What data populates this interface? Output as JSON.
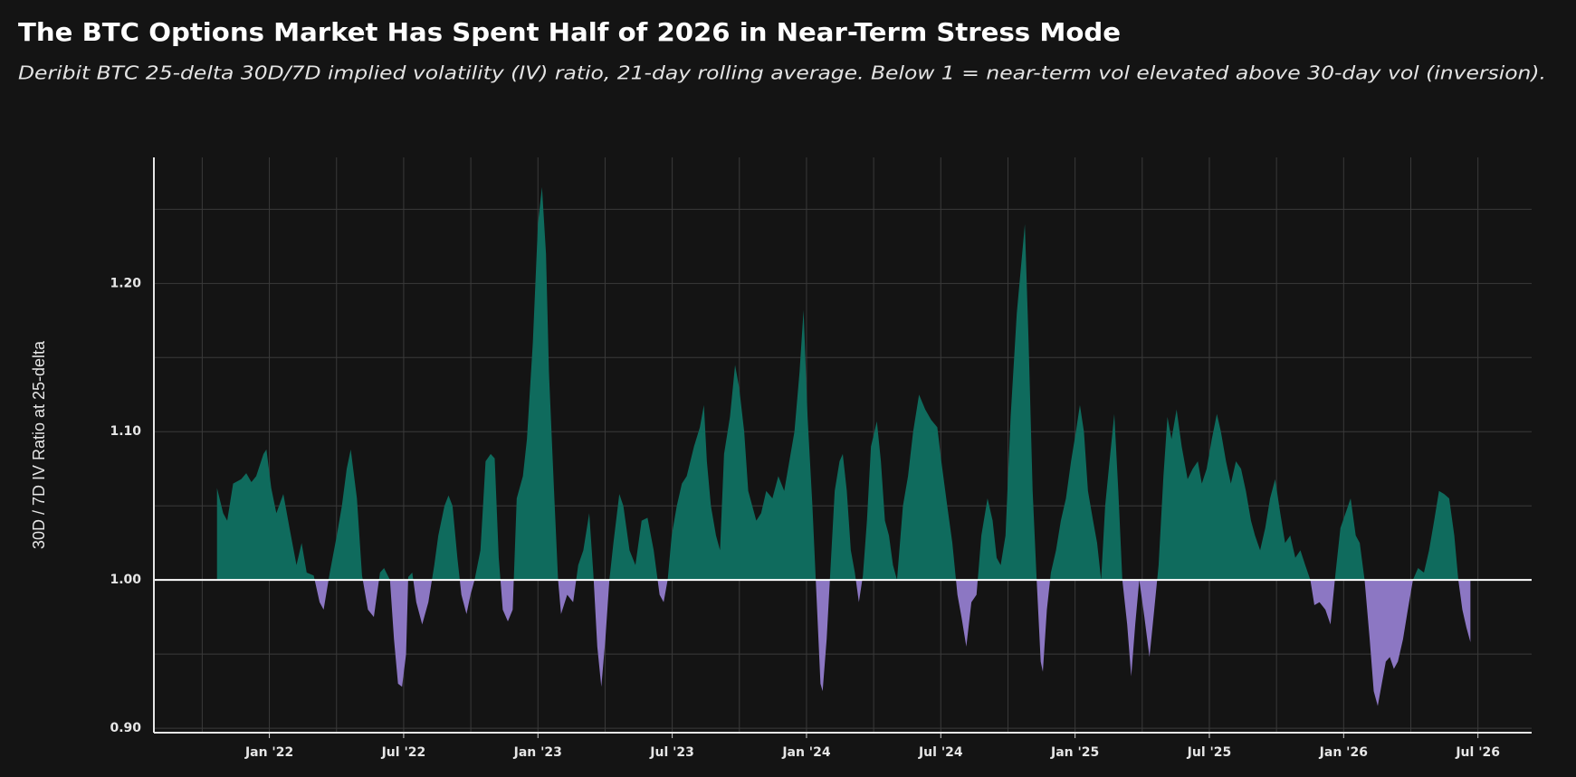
{
  "chart_data": {
    "type": "area",
    "title": "The BTC Options Market Has Spent Half of 2026 in Near-Term Stress Mode",
    "subtitle": "Deribit BTC 25-delta 30D/7D implied volatility (IV) ratio, 21-day rolling average. Below 1 = near-term vol elevated above 30-day vol (inversion).",
    "y_label": "30D / 7D IV Ratio at 25-delta",
    "baseline": 1.0,
    "colors": {
      "above": "#0f6b5d",
      "below": "#8c77c3"
    },
    "grid": true,
    "xlim": [
      2021.57,
      2026.7
    ],
    "ylim": [
      0.897,
      1.285
    ],
    "xticks": [
      {
        "value": 2022,
        "label": "Jan '22"
      },
      {
        "value": 2022.5,
        "label": "Jul '22"
      },
      {
        "value": 2023,
        "label": "Jan '23"
      },
      {
        "value": 2023.5,
        "label": "Jul '23"
      },
      {
        "value": 2024,
        "label": "Jan '24"
      },
      {
        "value": 2024.5,
        "label": "Jul '24"
      },
      {
        "value": 2025,
        "label": "Jan '25"
      },
      {
        "value": 2025.5,
        "label": "Jul '25"
      },
      {
        "value": 2026,
        "label": "Jan '26"
      },
      {
        "value": 2026.5,
        "label": "Jul '26"
      }
    ],
    "xgrid_minor": [
      2021.75,
      2022.25,
      2022.75,
      2023.25,
      2023.75,
      2024.25,
      2024.75,
      2025.25,
      2025.75,
      2026.25
    ],
    "yticks": [
      {
        "value": 0.9,
        "label": "0.90"
      },
      {
        "value": 1.0,
        "label": "1.00"
      },
      {
        "value": 1.1,
        "label": "1.10"
      },
      {
        "value": 1.2,
        "label": "1.20"
      }
    ],
    "ygrid_minor": [
      0.95,
      1.05,
      1.15,
      1.25
    ],
    "x": [
      2021.805,
      2021.828,
      2021.843,
      2021.865,
      2021.895,
      2021.914,
      2021.933,
      2021.951,
      2021.978,
      2021.989,
      2022.007,
      2022.026,
      2022.052,
      2022.075,
      2022.101,
      2022.12,
      2022.139,
      2022.165,
      2022.187,
      2022.202,
      2022.225,
      2022.251,
      2022.27,
      2022.288,
      2022.303,
      2022.326,
      2022.345,
      2022.367,
      2022.389,
      2022.412,
      2022.427,
      2022.449,
      2022.464,
      2022.479,
      2022.494,
      2022.509,
      2022.517,
      2022.532,
      2022.547,
      2022.569,
      2022.592,
      2022.614,
      2022.629,
      2022.652,
      2022.667,
      2022.682,
      2022.7,
      2022.715,
      2022.734,
      2022.749,
      2022.764,
      2022.786,
      2022.805,
      2022.824,
      2022.839,
      2022.854,
      2022.869,
      2022.888,
      2022.906,
      2022.921,
      2022.944,
      2022.959,
      2022.981,
      2023.0,
      2023.015,
      2023.03,
      2023.041,
      2023.06,
      2023.075,
      2023.086,
      2023.109,
      2023.131,
      2023.15,
      2023.169,
      2023.191,
      2023.206,
      2023.221,
      2023.236,
      2023.251,
      2023.266,
      2023.281,
      2023.303,
      2023.318,
      2023.341,
      2023.363,
      2023.386,
      2023.408,
      2023.431,
      2023.453,
      2023.468,
      2023.483,
      2023.498,
      2023.517,
      2023.536,
      2023.554,
      2023.581,
      2023.603,
      2023.618,
      2023.629,
      2023.644,
      2023.663,
      2023.678,
      2023.693,
      2023.715,
      2023.734,
      2023.749,
      2023.768,
      2023.783,
      2023.798,
      2023.813,
      2023.831,
      2023.85,
      2023.873,
      2023.895,
      2023.917,
      2023.936,
      2023.955,
      2023.974,
      2023.989,
      2024.004,
      2024.022,
      2024.037,
      2024.052,
      2024.06,
      2024.075,
      2024.09,
      2024.105,
      2024.123,
      2024.135,
      2024.15,
      2024.165,
      2024.18,
      2024.195,
      2024.21,
      2024.225,
      2024.24,
      2024.262,
      2024.277,
      2024.292,
      2024.307,
      2024.322,
      2024.337,
      2024.359,
      2024.378,
      2024.397,
      2024.419,
      2024.442,
      2024.464,
      2024.487,
      2024.502,
      2024.524,
      2024.543,
      2024.562,
      2024.577,
      2024.595,
      2024.614,
      2024.633,
      2024.651,
      2024.674,
      2024.693,
      2024.708,
      2024.723,
      2024.741,
      2024.76,
      2024.783,
      2024.798,
      2024.813,
      2024.827,
      2024.842,
      2024.857,
      2024.872,
      2024.88,
      2024.895,
      2024.91,
      2024.929,
      2024.947,
      2024.966,
      2024.985,
      2025.003,
      2025.018,
      2025.033,
      2025.048,
      2025.067,
      2025.082,
      2025.097,
      2025.112,
      2025.131,
      2025.146,
      2025.161,
      2025.176,
      2025.194,
      2025.209,
      2025.224,
      2025.239,
      2025.258,
      2025.277,
      2025.292,
      2025.311,
      2025.329,
      2025.344,
      2025.359,
      2025.378,
      2025.397,
      2025.419,
      2025.438,
      2025.457,
      2025.472,
      2025.49,
      2025.509,
      2025.528,
      2025.543,
      2025.562,
      2025.58,
      2025.599,
      2025.618,
      2025.636,
      2025.655,
      2025.67,
      2025.689,
      2025.708,
      2025.726,
      2025.745,
      2025.764,
      2025.782,
      2025.801,
      2025.82,
      2025.839,
      2025.857,
      2025.876,
      2025.891,
      2025.91,
      2025.932,
      2025.951,
      2025.97,
      2025.988,
      2026.007,
      2026.026,
      2026.045,
      2026.06,
      2026.078,
      2026.097,
      2026.112,
      2026.127,
      2026.142,
      2026.157,
      2026.172,
      2026.187,
      2026.202,
      2026.221,
      2026.239,
      2026.258,
      2026.277,
      2026.299,
      2026.318,
      2026.337,
      2026.355,
      2026.374,
      2026.393,
      2026.412,
      2026.427,
      2026.442,
      2026.457,
      2026.472
    ],
    "values": [
      1.062,
      1.045,
      1.04,
      1.065,
      1.068,
      1.072,
      1.066,
      1.07,
      1.085,
      1.088,
      1.062,
      1.045,
      1.058,
      1.035,
      1.01,
      1.025,
      1.005,
      1.003,
      0.985,
      0.98,
      1.005,
      1.03,
      1.05,
      1.075,
      1.088,
      1.055,
      1.003,
      0.98,
      0.975,
      1.005,
      1.008,
      1.0,
      0.96,
      0.93,
      0.928,
      0.95,
      1.002,
      1.005,
      0.985,
      0.97,
      0.985,
      1.01,
      1.03,
      1.05,
      1.057,
      1.05,
      1.015,
      0.99,
      0.977,
      0.99,
      1.0,
      1.02,
      1.08,
      1.085,
      1.082,
      1.015,
      0.98,
      0.972,
      0.98,
      1.055,
      1.07,
      1.095,
      1.16,
      1.24,
      1.265,
      1.22,
      1.14,
      1.06,
      1.0,
      0.977,
      0.99,
      0.985,
      1.01,
      1.02,
      1.045,
      1.005,
      0.955,
      0.928,
      0.96,
      1.0,
      1.025,
      1.058,
      1.05,
      1.02,
      1.01,
      1.04,
      1.042,
      1.02,
      0.99,
      0.985,
      1.0,
      1.03,
      1.05,
      1.065,
      1.07,
      1.09,
      1.103,
      1.118,
      1.08,
      1.05,
      1.03,
      1.02,
      1.085,
      1.11,
      1.145,
      1.13,
      1.1,
      1.06,
      1.05,
      1.04,
      1.045,
      1.06,
      1.055,
      1.07,
      1.06,
      1.08,
      1.1,
      1.14,
      1.182,
      1.11,
      1.05,
      0.99,
      0.93,
      0.925,
      0.96,
      1.01,
      1.06,
      1.08,
      1.085,
      1.06,
      1.02,
      1.005,
      0.985,
      1.003,
      1.04,
      1.09,
      1.107,
      1.08,
      1.04,
      1.03,
      1.01,
      1.0,
      1.05,
      1.07,
      1.1,
      1.125,
      1.115,
      1.108,
      1.103,
      1.08,
      1.05,
      1.025,
      0.99,
      0.975,
      0.955,
      0.985,
      0.99,
      1.03,
      1.055,
      1.04,
      1.015,
      1.01,
      1.03,
      1.11,
      1.18,
      1.21,
      1.24,
      1.16,
      1.06,
      1.0,
      0.945,
      0.938,
      0.98,
      1.005,
      1.02,
      1.04,
      1.055,
      1.08,
      1.1,
      1.118,
      1.1,
      1.06,
      1.04,
      1.025,
      1.0,
      1.05,
      1.085,
      1.112,
      1.06,
      1.0,
      0.97,
      0.935,
      0.97,
      1.0,
      0.975,
      0.948,
      0.975,
      1.01,
      1.07,
      1.11,
      1.095,
      1.115,
      1.09,
      1.068,
      1.075,
      1.08,
      1.065,
      1.075,
      1.095,
      1.112,
      1.1,
      1.08,
      1.065,
      1.08,
      1.075,
      1.06,
      1.04,
      1.03,
      1.02,
      1.035,
      1.055,
      1.068,
      1.045,
      1.025,
      1.03,
      1.015,
      1.02,
      1.01,
      1.0,
      0.983,
      0.985,
      0.98,
      0.97,
      1.005,
      1.035,
      1.045,
      1.055,
      1.03,
      1.025,
      1.0,
      0.96,
      0.925,
      0.915,
      0.93,
      0.945,
      0.948,
      0.94,
      0.945,
      0.96,
      0.98,
      1.0,
      1.008,
      1.005,
      1.02,
      1.04,
      1.06,
      1.058,
      1.055,
      1.03,
      1.0,
      0.98,
      0.968,
      0.958
    ]
  }
}
